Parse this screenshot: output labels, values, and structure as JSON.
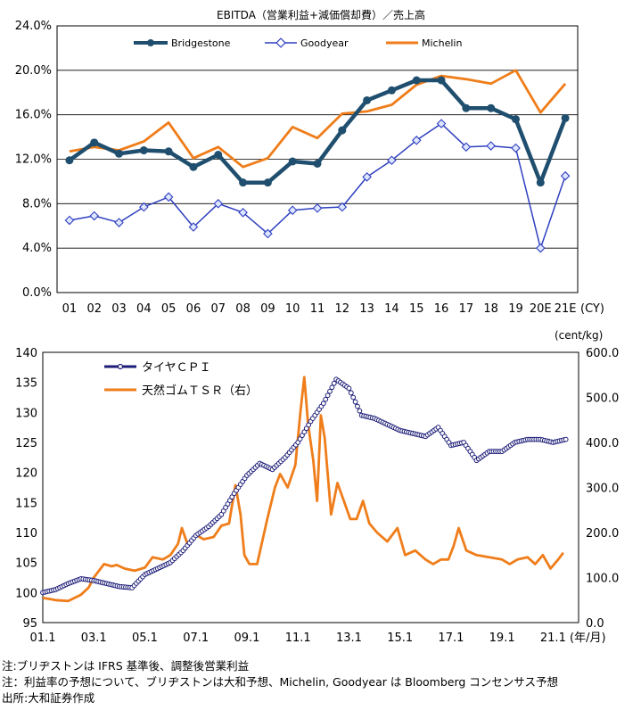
{
  "colors": {
    "bridgestone": "#1f4e6e",
    "goodyear": "#2e3fbf",
    "michelin": "#ef7d1a",
    "cpi": "#1c1c78",
    "tsr": "#ef7d1a"
  },
  "chart_data": [
    {
      "type": "line",
      "title": "EBITDA（営業利益+減価償却費）／売上高",
      "xlabel": "(CY)",
      "categories": [
        "01",
        "02",
        "03",
        "04",
        "05",
        "06",
        "07",
        "08",
        "09",
        "10",
        "11",
        "12",
        "13",
        "14",
        "15",
        "16",
        "17",
        "18",
        "19",
        "20E",
        "21E"
      ],
      "ylim": [
        0,
        24
      ],
      "yticks": [
        "0.0%",
        "4.0%",
        "8.0%",
        "12.0%",
        "16.0%",
        "20.0%",
        "24.0%"
      ],
      "legend": [
        "Bridgestone",
        "Goodyear",
        "Michelin"
      ],
      "series": [
        {
          "name": "Bridgestone",
          "values": [
            11.9,
            13.5,
            12.5,
            12.8,
            12.7,
            11.3,
            12.4,
            9.9,
            9.9,
            11.8,
            11.6,
            14.6,
            17.3,
            18.2,
            19.1,
            19.1,
            16.6,
            16.6,
            15.6,
            9.9,
            15.7
          ]
        },
        {
          "name": "Goodyear",
          "values": [
            6.5,
            6.9,
            6.3,
            7.7,
            8.6,
            5.9,
            8.0,
            7.2,
            5.3,
            7.4,
            7.6,
            7.7,
            10.4,
            11.9,
            13.7,
            15.2,
            13.1,
            13.2,
            13.0,
            4.0,
            10.5
          ]
        },
        {
          "name": "Michelin",
          "values": [
            12.7,
            13.1,
            12.8,
            13.6,
            15.3,
            12.1,
            13.1,
            11.3,
            12.1,
            14.9,
            13.9,
            16.1,
            16.3,
            16.9,
            18.7,
            19.5,
            19.2,
            18.8,
            20.0,
            16.2,
            18.8
          ]
        }
      ]
    },
    {
      "type": "line",
      "xlabel": "(年/月)",
      "y2label": "(cent/kg)",
      "xticks": [
        "01.1",
        "03.1",
        "05.1",
        "07.1",
        "09.1",
        "11.1",
        "13.1",
        "15.1",
        "17.1",
        "19.1",
        "21.1"
      ],
      "x_range": [
        2001.0,
        2022.0
      ],
      "ylim_left": [
        95,
        140
      ],
      "yticks_left": [
        "95",
        "100",
        "105",
        "110",
        "115",
        "120",
        "125",
        "130",
        "135",
        "140"
      ],
      "ylim_right": [
        0,
        600
      ],
      "yticks_right": [
        "0.0",
        "100.0",
        "200.0",
        "300.0",
        "400.0",
        "500.0",
        "600.0"
      ],
      "legend": [
        "タイヤＣＰＩ",
        "天然ゴムＴＳＲ（右）"
      ],
      "series": [
        {
          "name": "タイヤＣＰＩ",
          "axis": "left",
          "x": [
            2001.0,
            2001.5,
            2002.0,
            2002.5,
            2003.0,
            2003.5,
            2004.0,
            2004.5,
            2005.0,
            2005.5,
            2006.0,
            2006.5,
            2007.0,
            2007.5,
            2008.0,
            2008.5,
            2009.0,
            2009.5,
            2010.0,
            2010.5,
            2011.0,
            2011.5,
            2012.0,
            2012.5,
            2013.0,
            2013.5,
            2014.0,
            2014.5,
            2015.0,
            2015.5,
            2016.0,
            2016.5,
            2017.0,
            2017.5,
            2018.0,
            2018.5,
            2019.0,
            2019.5,
            2020.0,
            2020.5,
            2021.0,
            2021.5
          ],
          "values": [
            100,
            100.5,
            101.5,
            102.3,
            102,
            101.5,
            101,
            100.8,
            103,
            104,
            105,
            107,
            109.5,
            111,
            113,
            116.5,
            119.5,
            121.5,
            120.5,
            122.5,
            125,
            128.5,
            131.5,
            135.5,
            134,
            129.5,
            129,
            128,
            127,
            126.5,
            126,
            127.5,
            124.5,
            125,
            122,
            123.5,
            123.5,
            125,
            125.5,
            125.5,
            125,
            125.5
          ]
        },
        {
          "name": "天然ゴムＴＳＲ（右）",
          "axis": "right",
          "x": [
            2001.0,
            2001.5,
            2002.0,
            2002.5,
            2002.8,
            2003.0,
            2003.4,
            2003.7,
            2003.9,
            2004.2,
            2004.6,
            2005.0,
            2005.3,
            2005.7,
            2006.0,
            2006.3,
            2006.45,
            2006.7,
            2007.0,
            2007.3,
            2007.7,
            2008.0,
            2008.3,
            2008.55,
            2008.75,
            2008.9,
            2009.1,
            2009.4,
            2009.8,
            2010.1,
            2010.3,
            2010.6,
            2010.9,
            2011.1,
            2011.25,
            2011.4,
            2011.6,
            2011.75,
            2011.9,
            2012.05,
            2012.3,
            2012.55,
            2012.8,
            2013.05,
            2013.3,
            2013.55,
            2013.8,
            2014.1,
            2014.5,
            2014.9,
            2015.2,
            2015.6,
            2016.0,
            2016.3,
            2016.6,
            2016.9,
            2017.1,
            2017.3,
            2017.6,
            2018.0,
            2018.5,
            2019.0,
            2019.3,
            2019.6,
            2020.0,
            2020.3,
            2020.6,
            2020.9,
            2021.2,
            2021.4
          ],
          "values": [
            55,
            50,
            48,
            62,
            78,
            100,
            130,
            125,
            128,
            120,
            115,
            122,
            145,
            140,
            150,
            175,
            210,
            170,
            195,
            185,
            190,
            215,
            220,
            305,
            240,
            150,
            130,
            130,
            230,
            300,
            330,
            300,
            350,
            470,
            545,
            440,
            360,
            270,
            460,
            410,
            240,
            310,
            270,
            230,
            230,
            270,
            220,
            200,
            180,
            210,
            150,
            160,
            140,
            130,
            140,
            140,
            170,
            210,
            160,
            150,
            145,
            140,
            130,
            140,
            145,
            130,
            150,
            120,
            140,
            155
          ]
        }
      ]
    }
  ],
  "notes": [
    "注:ブリヂストンは IFRS 基準後、調整後営業利益",
    "注：利益率の予想について、ブリヂストンは大和予想、Michelin, Goodyear は Bloomberg コンセンサス予想",
    "出所:大和証券作成"
  ]
}
